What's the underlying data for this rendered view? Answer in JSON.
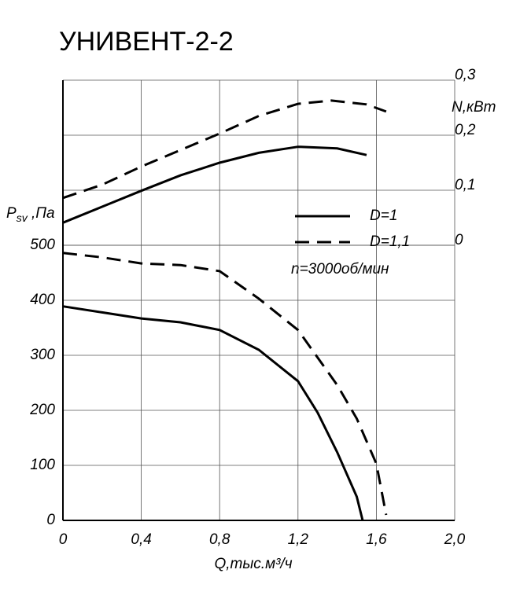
{
  "chart_data": {
    "type": "line",
    "title": "УНИВЕНТ-2-2",
    "x_label": "Q,тыс.м³/ч",
    "y_label": [
      "P",
      "sv",
      " ,Па"
    ],
    "y2_label": "N,кВт",
    "annotation": "n=3000об/мин",
    "xlim": [
      0,
      2.0
    ],
    "xticks": [
      0,
      {
        "value": 0.4,
        "label": "0,4"
      },
      {
        "value": 0.8,
        "label": "0,8"
      },
      {
        "value": 1.2,
        "label": "1,2"
      },
      {
        "value": 1.6,
        "label": "1,6"
      },
      {
        "value": 2.0,
        "label": "2,0"
      }
    ],
    "ylim": [
      0,
      800
    ],
    "yticks": [
      0,
      100,
      200,
      300,
      400,
      500
    ],
    "y2lim": [
      -0.5,
      0.3
    ],
    "y2ticks": [
      0,
      {
        "value": 0.1,
        "label": "0,1"
      },
      {
        "value": 0.2,
        "label": "0,2"
      },
      {
        "value": 0.3,
        "label": "0,3"
      }
    ],
    "grid": true,
    "series": [
      {
        "name": "D=1",
        "color": "#000000",
        "dash": false,
        "x": [
          0,
          0.2,
          0.4,
          0.6,
          0.8,
          1.0,
          1.2,
          1.3,
          1.4,
          1.5,
          1.53
        ],
        "values": [
          389,
          378,
          367,
          360,
          346,
          310,
          253,
          196,
          124,
          43,
          0
        ]
      },
      {
        "name": "D=1,1",
        "color": "#000000",
        "dash": true,
        "x": [
          0,
          0.2,
          0.4,
          0.6,
          0.8,
          1.0,
          1.2,
          1.4,
          1.5,
          1.6,
          1.65
        ],
        "values": [
          486,
          478,
          467,
          464,
          453,
          403,
          346,
          246,
          185,
          103,
          10
        ]
      },
      {
        "color": "#000000",
        "dash": false,
        "axis": "y2",
        "x": [
          0,
          0.2,
          0.4,
          0.6,
          0.8,
          1.0,
          1.2,
          1.4,
          1.55
        ],
        "values": [
          0.041,
          0.07,
          0.099,
          0.127,
          0.15,
          0.168,
          0.179,
          0.176,
          0.164
        ]
      },
      {
        "color": "#000000",
        "dash": true,
        "axis": "y2",
        "x": [
          0,
          0.2,
          0.4,
          0.6,
          0.8,
          1.0,
          1.2,
          1.37,
          1.55,
          1.65
        ],
        "values": [
          0.086,
          0.11,
          0.143,
          0.173,
          0.203,
          0.235,
          0.257,
          0.263,
          0.256,
          0.243
        ]
      }
    ]
  }
}
